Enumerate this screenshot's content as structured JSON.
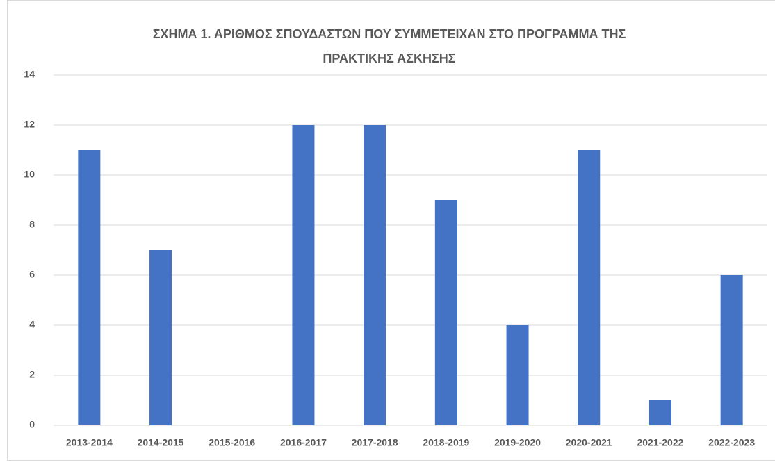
{
  "chart_data": {
    "type": "bar",
    "title": "ΣΧΗΜΑ 1. ΑΡΙΘΜΟΣ ΣΠΟΥΔΑΣΤΩΝ ΠΟΥ ΣΥΜΜΕΤΕΙΧΑΝ ΣΤΟ ΠΡΟΓΡΑΜΜΑ ΤΗΣ ΠΡΑΚΤΙΚΗΣ ΑΣΚΗΣΗΣ",
    "categories": [
      "2013-2014",
      "2014-2015",
      "2015-2016",
      "2016-2017",
      "2017-2018",
      "2018-2019",
      "2019-2020",
      "2020-2021",
      "2021-2022",
      "2022-2023"
    ],
    "values": [
      11,
      7,
      0,
      12,
      12,
      9,
      4,
      11,
      1,
      6
    ],
    "color": "#4472c4",
    "ylim": [
      0,
      14
    ],
    "yticks": [
      0,
      2,
      4,
      6,
      8,
      10,
      12,
      14
    ],
    "grid": true
  }
}
